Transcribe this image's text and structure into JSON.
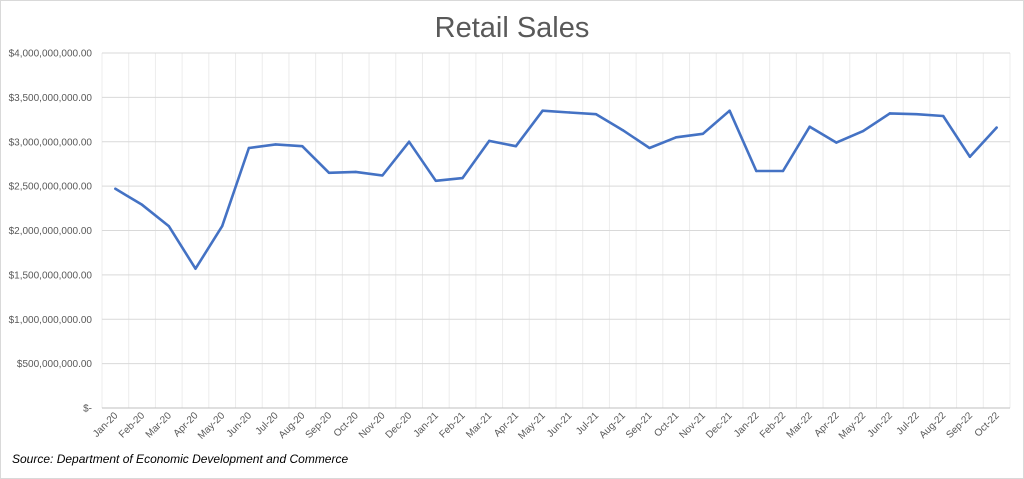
{
  "chart_data": {
    "type": "line",
    "title": "Retail Sales",
    "xlabel": "",
    "ylabel": "",
    "ylim": [
      0,
      4000000000
    ],
    "grid": true,
    "y_ticks": [
      {
        "value": 0,
        "label": "$-"
      },
      {
        "value": 500000000,
        "label": "$500,000,000.00"
      },
      {
        "value": 1000000000,
        "label": "$1,000,000,000.00"
      },
      {
        "value": 1500000000,
        "label": "$1,500,000,000.00"
      },
      {
        "value": 2000000000,
        "label": "$2,000,000,000.00"
      },
      {
        "value": 2500000000,
        "label": "$2,500,000,000.00"
      },
      {
        "value": 3000000000,
        "label": "$3,000,000,000.00"
      },
      {
        "value": 3500000000,
        "label": "$3,500,000,000.00"
      },
      {
        "value": 4000000000,
        "label": "$4,000,000,000.00"
      }
    ],
    "categories": [
      "Jan-20",
      "Feb-20",
      "Mar-20",
      "Apr-20",
      "May-20",
      "Jun-20",
      "Jul-20",
      "Aug-20",
      "Sep-20",
      "Oct-20",
      "Nov-20",
      "Dec-20",
      "Jan-21",
      "Feb-21",
      "Mar-21",
      "Apr-21",
      "May-21",
      "Jun-21",
      "Jul-21",
      "Aug-21",
      "Sep-21",
      "Oct-21",
      "Nov-21",
      "Dec-21",
      "Jan-22",
      "Feb-22",
      "Mar-22",
      "Apr-22",
      "May-22",
      "Jun-22",
      "Jul-22",
      "Aug-22",
      "Sep-22",
      "Oct-22"
    ],
    "series": [
      {
        "name": "",
        "color": "#4472c4",
        "values": [
          2470000000,
          2290000000,
          2050000000,
          1570000000,
          2050000000,
          2930000000,
          2970000000,
          2950000000,
          2650000000,
          2660000000,
          2620000000,
          3000000000,
          2560000000,
          2590000000,
          3010000000,
          2950000000,
          3350000000,
          3330000000,
          3310000000,
          3130000000,
          2930000000,
          3050000000,
          3090000000,
          3350000000,
          2670000000,
          2670000000,
          3170000000,
          2990000000,
          3120000000,
          3320000000,
          3310000000,
          3290000000,
          2830000000,
          3160000000
        ]
      }
    ]
  },
  "footer": {
    "source": "Source: Department of Economic Development and Commerce"
  }
}
